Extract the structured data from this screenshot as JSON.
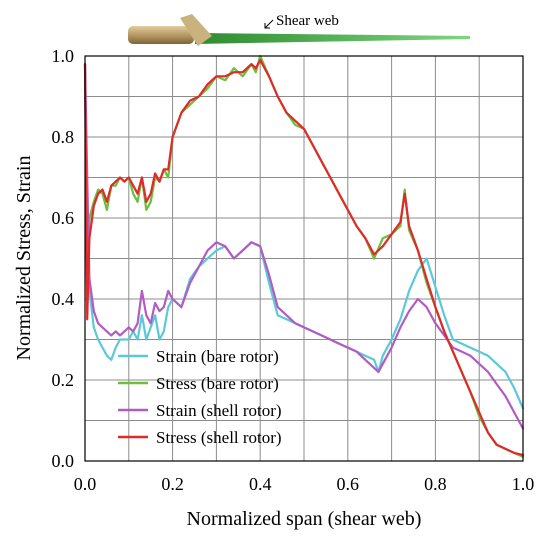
{
  "chart_data": {
    "type": "line",
    "title": "",
    "xlabel": "Normalized span (shear web)",
    "ylabel": "Normalized  Stress, Strain",
    "xlim": [
      0.0,
      1.0
    ],
    "ylim": [
      0.0,
      1.0
    ],
    "xticks": [
      "0.0",
      "0.2",
      "0.4",
      "0.6",
      "0.8",
      "1.0"
    ],
    "yticks": [
      "0.0",
      "0.2",
      "0.4",
      "0.6",
      "0.8",
      "1.0"
    ],
    "grid": true,
    "legend_position": "bottom-left",
    "annotation": "Shear web",
    "series": [
      {
        "name": "Strain (bare rotor)",
        "color": "#5bc8dc",
        "x": [
          0.0,
          0.005,
          0.01,
          0.02,
          0.03,
          0.04,
          0.05,
          0.06,
          0.07,
          0.08,
          0.09,
          0.1,
          0.11,
          0.12,
          0.13,
          0.14,
          0.15,
          0.16,
          0.17,
          0.18,
          0.19,
          0.2,
          0.22,
          0.24,
          0.26,
          0.28,
          0.3,
          0.32,
          0.34,
          0.36,
          0.38,
          0.4,
          0.42,
          0.44,
          0.46,
          0.48,
          0.5,
          0.52,
          0.54,
          0.56,
          0.58,
          0.6,
          0.62,
          0.64,
          0.66,
          0.67,
          0.68,
          0.7,
          0.72,
          0.74,
          0.76,
          0.78,
          0.8,
          0.82,
          0.84,
          0.86,
          0.88,
          0.9,
          0.92,
          0.94,
          0.96,
          0.98,
          1.0
        ],
        "values": [
          0.98,
          0.6,
          0.42,
          0.33,
          0.3,
          0.28,
          0.26,
          0.25,
          0.28,
          0.3,
          0.3,
          0.3,
          0.32,
          0.3,
          0.36,
          0.3,
          0.33,
          0.36,
          0.3,
          0.32,
          0.38,
          0.4,
          0.38,
          0.45,
          0.48,
          0.5,
          0.52,
          0.53,
          0.5,
          0.52,
          0.54,
          0.53,
          0.44,
          0.36,
          0.35,
          0.34,
          0.33,
          0.32,
          0.31,
          0.3,
          0.29,
          0.28,
          0.27,
          0.26,
          0.25,
          0.22,
          0.26,
          0.3,
          0.35,
          0.42,
          0.47,
          0.5,
          0.43,
          0.36,
          0.3,
          0.29,
          0.28,
          0.27,
          0.26,
          0.24,
          0.22,
          0.18,
          0.13
        ]
      },
      {
        "name": "Stress (bare rotor)",
        "color": "#6bbf3a",
        "x": [
          0.0,
          0.005,
          0.01,
          0.02,
          0.03,
          0.04,
          0.05,
          0.06,
          0.07,
          0.08,
          0.09,
          0.1,
          0.11,
          0.12,
          0.13,
          0.14,
          0.15,
          0.16,
          0.17,
          0.18,
          0.19,
          0.2,
          0.22,
          0.24,
          0.26,
          0.28,
          0.3,
          0.32,
          0.34,
          0.36,
          0.38,
          0.39,
          0.4,
          0.42,
          0.44,
          0.46,
          0.48,
          0.5,
          0.52,
          0.54,
          0.56,
          0.58,
          0.6,
          0.62,
          0.64,
          0.66,
          0.68,
          0.7,
          0.72,
          0.73,
          0.74,
          0.76,
          0.78,
          0.8,
          0.82,
          0.84,
          0.86,
          0.88,
          0.9,
          0.92,
          0.94,
          0.96,
          0.98,
          1.0
        ],
        "values": [
          0.98,
          0.5,
          0.6,
          0.64,
          0.67,
          0.66,
          0.62,
          0.68,
          0.68,
          0.7,
          0.69,
          0.7,
          0.66,
          0.64,
          0.7,
          0.62,
          0.64,
          0.7,
          0.69,
          0.72,
          0.7,
          0.8,
          0.86,
          0.88,
          0.9,
          0.92,
          0.95,
          0.94,
          0.97,
          0.95,
          0.98,
          0.96,
          1.0,
          0.95,
          0.9,
          0.86,
          0.83,
          0.82,
          0.78,
          0.74,
          0.7,
          0.66,
          0.62,
          0.58,
          0.55,
          0.5,
          0.55,
          0.56,
          0.58,
          0.67,
          0.57,
          0.52,
          0.44,
          0.38,
          0.32,
          0.27,
          0.22,
          0.17,
          0.11,
          0.07,
          0.04,
          0.03,
          0.02,
          0.01
        ]
      },
      {
        "name": "Strain (shell rotor)",
        "color": "#b25bc2",
        "x": [
          0.0,
          0.005,
          0.01,
          0.02,
          0.03,
          0.04,
          0.05,
          0.06,
          0.07,
          0.08,
          0.09,
          0.1,
          0.11,
          0.12,
          0.13,
          0.14,
          0.15,
          0.16,
          0.17,
          0.18,
          0.19,
          0.2,
          0.22,
          0.24,
          0.26,
          0.28,
          0.3,
          0.32,
          0.34,
          0.36,
          0.38,
          0.4,
          0.42,
          0.44,
          0.46,
          0.48,
          0.5,
          0.52,
          0.54,
          0.56,
          0.58,
          0.6,
          0.62,
          0.64,
          0.66,
          0.67,
          0.68,
          0.7,
          0.72,
          0.74,
          0.76,
          0.78,
          0.8,
          0.82,
          0.84,
          0.86,
          0.88,
          0.9,
          0.92,
          0.94,
          0.96,
          0.98,
          1.0
        ],
        "values": [
          0.98,
          0.7,
          0.45,
          0.37,
          0.34,
          0.33,
          0.32,
          0.31,
          0.32,
          0.31,
          0.32,
          0.33,
          0.32,
          0.34,
          0.42,
          0.36,
          0.34,
          0.39,
          0.37,
          0.38,
          0.42,
          0.4,
          0.38,
          0.44,
          0.48,
          0.52,
          0.54,
          0.53,
          0.5,
          0.52,
          0.54,
          0.53,
          0.46,
          0.38,
          0.36,
          0.34,
          0.33,
          0.32,
          0.31,
          0.3,
          0.29,
          0.28,
          0.27,
          0.25,
          0.23,
          0.22,
          0.24,
          0.28,
          0.33,
          0.37,
          0.4,
          0.38,
          0.34,
          0.31,
          0.28,
          0.27,
          0.26,
          0.24,
          0.22,
          0.19,
          0.16,
          0.12,
          0.08
        ]
      },
      {
        "name": "Stress (shell rotor)",
        "color": "#e02a2a",
        "x": [
          0.0,
          0.005,
          0.01,
          0.02,
          0.03,
          0.04,
          0.05,
          0.06,
          0.07,
          0.08,
          0.09,
          0.1,
          0.11,
          0.12,
          0.13,
          0.14,
          0.15,
          0.16,
          0.17,
          0.18,
          0.19,
          0.2,
          0.22,
          0.24,
          0.26,
          0.28,
          0.3,
          0.32,
          0.34,
          0.36,
          0.38,
          0.39,
          0.4,
          0.42,
          0.44,
          0.46,
          0.48,
          0.5,
          0.52,
          0.54,
          0.56,
          0.58,
          0.6,
          0.62,
          0.64,
          0.66,
          0.68,
          0.7,
          0.72,
          0.73,
          0.74,
          0.76,
          0.78,
          0.8,
          0.82,
          0.84,
          0.86,
          0.88,
          0.9,
          0.92,
          0.94,
          0.96,
          0.98,
          1.0
        ],
        "values": [
          0.98,
          0.35,
          0.55,
          0.63,
          0.66,
          0.67,
          0.64,
          0.68,
          0.69,
          0.7,
          0.69,
          0.7,
          0.68,
          0.66,
          0.7,
          0.64,
          0.66,
          0.71,
          0.69,
          0.72,
          0.72,
          0.8,
          0.86,
          0.89,
          0.9,
          0.93,
          0.95,
          0.95,
          0.96,
          0.96,
          0.98,
          0.97,
          0.99,
          0.95,
          0.9,
          0.86,
          0.84,
          0.82,
          0.78,
          0.74,
          0.7,
          0.66,
          0.62,
          0.58,
          0.55,
          0.51,
          0.53,
          0.56,
          0.59,
          0.66,
          0.58,
          0.52,
          0.45,
          0.38,
          0.32,
          0.27,
          0.22,
          0.17,
          0.12,
          0.07,
          0.04,
          0.03,
          0.02,
          0.015
        ]
      }
    ]
  }
}
